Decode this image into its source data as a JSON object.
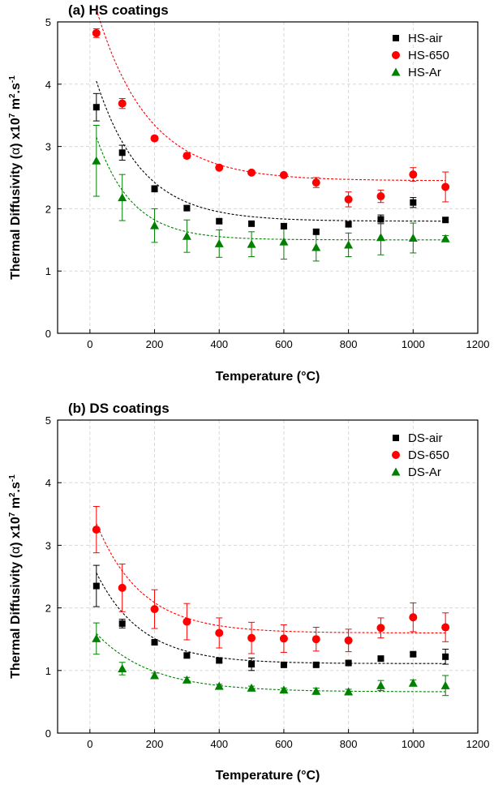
{
  "chart_data": [
    {
      "type": "scatter",
      "panel_label": "(a) HS coatings",
      "xlabel": "Temperature (°C)",
      "ylabel_main": "Thermal Diffusivity (",
      "ylabel_symbol": "α",
      "ylabel_rest": ") x10",
      "ylabel_exp1": "7",
      "ylabel_mid": " m",
      "ylabel_exp2": "2",
      "ylabel_end": ".s",
      "ylabel_exp3": "-1",
      "xlim": [
        -100,
        1200
      ],
      "ylim": [
        0,
        5
      ],
      "xticks": [
        0,
        200,
        400,
        600,
        800,
        1000,
        1200
      ],
      "yticks": [
        0,
        1,
        2,
        3,
        4,
        5
      ],
      "grid": true,
      "legend_position": "top-right",
      "series": [
        {
          "name": "HS-air",
          "color": "#000000",
          "marker": "square",
          "x": [
            20,
            100,
            200,
            300,
            400,
            500,
            600,
            700,
            800,
            900,
            1000,
            1100
          ],
          "y": [
            3.63,
            2.9,
            2.32,
            2.01,
            1.8,
            1.76,
            1.72,
            1.63,
            1.75,
            1.83,
            2.1,
            1.82
          ],
          "err": [
            0.22,
            0.12,
            0.05,
            0.04,
            0.03,
            0.03,
            0.03,
            0.03,
            0.04,
            0.07,
            0.08,
            0.03
          ],
          "fit": [
            1.8,
            2.25,
            140
          ]
        },
        {
          "name": "HS-650",
          "color": "#ff0000",
          "marker": "circle",
          "x": [
            20,
            100,
            200,
            300,
            400,
            500,
            600,
            700,
            800,
            900,
            1000,
            1100
          ],
          "y": [
            4.82,
            3.69,
            3.13,
            2.85,
            2.66,
            2.58,
            2.54,
            2.42,
            2.15,
            2.2,
            2.55,
            2.35
          ],
          "err": [
            0.07,
            0.08,
            0.04,
            0.04,
            0.03,
            0.03,
            0.03,
            0.08,
            0.12,
            0.1,
            0.11,
            0.24
          ],
          "fit": [
            2.45,
            2.75,
            160
          ]
        },
        {
          "name": "HS-Ar",
          "color": "#008000",
          "marker": "triangle",
          "x": [
            20,
            100,
            200,
            300,
            400,
            500,
            600,
            700,
            800,
            900,
            1000,
            1100
          ],
          "y": [
            2.77,
            2.18,
            1.73,
            1.56,
            1.44,
            1.43,
            1.47,
            1.38,
            1.42,
            1.54,
            1.53,
            1.52
          ],
          "err": [
            0.57,
            0.37,
            0.27,
            0.26,
            0.22,
            0.2,
            0.28,
            0.22,
            0.19,
            0.28,
            0.24,
            0.05
          ],
          "fit": [
            1.5,
            1.65,
            110
          ]
        }
      ]
    },
    {
      "type": "scatter",
      "panel_label": "(b) DS coatings",
      "xlabel": "Temperature (°C)",
      "ylabel_main": "Thermal Diffusivity (",
      "ylabel_symbol": "α",
      "ylabel_rest": ") x10",
      "ylabel_exp1": "7",
      "ylabel_mid": " m",
      "ylabel_exp2": "2",
      "ylabel_end": ".s",
      "ylabel_exp3": "-1",
      "xlim": [
        -100,
        1200
      ],
      "ylim": [
        0,
        5
      ],
      "xticks": [
        0,
        200,
        400,
        600,
        800,
        1000,
        1200
      ],
      "yticks": [
        0,
        1,
        2,
        3,
        4,
        5
      ],
      "grid": true,
      "legend_position": "top-right",
      "series": [
        {
          "name": "DS-air",
          "color": "#000000",
          "marker": "square",
          "x": [
            20,
            100,
            200,
            300,
            400,
            500,
            600,
            700,
            800,
            900,
            1000,
            1100
          ],
          "y": [
            2.35,
            1.75,
            1.45,
            1.24,
            1.16,
            1.1,
            1.09,
            1.09,
            1.12,
            1.19,
            1.26,
            1.22
          ],
          "err": [
            0.33,
            0.07,
            0.03,
            0.03,
            0.03,
            0.1,
            0.02,
            0.02,
            0.03,
            0.02,
            0.03,
            0.12
          ],
          "fit": [
            1.11,
            1.45,
            140
          ]
        },
        {
          "name": "DS-650",
          "color": "#ff0000",
          "marker": "circle",
          "x": [
            20,
            100,
            200,
            300,
            400,
            500,
            600,
            700,
            800,
            900,
            1000,
            1100
          ],
          "y": [
            3.25,
            2.32,
            1.98,
            1.78,
            1.6,
            1.52,
            1.51,
            1.5,
            1.48,
            1.68,
            1.85,
            1.69
          ],
          "err": [
            0.37,
            0.38,
            0.31,
            0.29,
            0.24,
            0.25,
            0.22,
            0.19,
            0.18,
            0.16,
            0.23,
            0.23
          ],
          "fit": [
            1.6,
            1.75,
            140
          ]
        },
        {
          "name": "DS-Ar",
          "color": "#008000",
          "marker": "triangle",
          "x": [
            20,
            100,
            200,
            300,
            400,
            500,
            600,
            700,
            800,
            900,
            1000,
            1100
          ],
          "y": [
            1.51,
            1.03,
            0.92,
            0.85,
            0.75,
            0.72,
            0.69,
            0.67,
            0.66,
            0.76,
            0.8,
            0.76
          ],
          "err": [
            0.25,
            0.1,
            0.04,
            0.04,
            0.03,
            0.03,
            0.03,
            0.05,
            0.04,
            0.08,
            0.05,
            0.16
          ],
          "fit": [
            0.66,
            0.93,
            170
          ]
        }
      ]
    }
  ]
}
